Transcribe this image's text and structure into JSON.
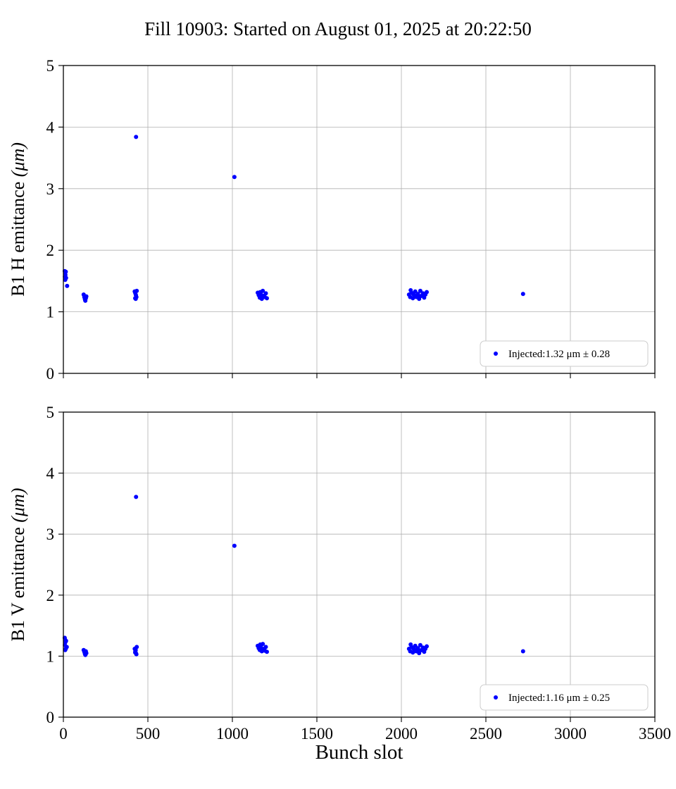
{
  "figure": {
    "title": "Fill 10903: Started on August 01, 2025 at 20:22:50",
    "xlabel": "Bunch slot",
    "background": "#ffffff",
    "axis_color": "#000000",
    "grid_color": "#b0b0b0",
    "marker_color": "#0000ff"
  },
  "chart_data": [
    {
      "type": "scatter",
      "ylabel": "B1 H emittance (μm)",
      "xlim": [
        0,
        3500
      ],
      "ylim": [
        0,
        5
      ],
      "xticks": [
        0,
        500,
        1000,
        1500,
        2000,
        2500,
        3000,
        3500
      ],
      "yticks": [
        0,
        1,
        2,
        3,
        4,
        5
      ],
      "grid": true,
      "legend": {
        "label": "Injected:1.32 μm ± 0.28",
        "position": "lower right"
      },
      "series": [
        {
          "name": "Injected",
          "color": "#0000ff",
          "points": [
            [
              8,
              1.66
            ],
            [
              10,
              1.63
            ],
            [
              12,
              1.6
            ],
            [
              9,
              1.57
            ],
            [
              14,
              1.65
            ],
            [
              11,
              1.52
            ],
            [
              16,
              1.55
            ],
            [
              22,
              1.42
            ],
            [
              120,
              1.28
            ],
            [
              124,
              1.24
            ],
            [
              127,
              1.21
            ],
            [
              130,
              1.18
            ],
            [
              133,
              1.22
            ],
            [
              136,
              1.25
            ],
            [
              129,
              1.19
            ],
            [
              422,
              1.33
            ],
            [
              426,
              1.3
            ],
            [
              429,
              1.27
            ],
            [
              432,
              1.24
            ],
            [
              428,
              1.21
            ],
            [
              434,
              1.34
            ],
            [
              425,
              1.22
            ],
            [
              430,
              3.84
            ],
            [
              1012,
              3.19
            ],
            [
              1150,
              1.31
            ],
            [
              1156,
              1.27
            ],
            [
              1162,
              1.23
            ],
            [
              1168,
              1.29
            ],
            [
              1174,
              1.21
            ],
            [
              1180,
              1.34
            ],
            [
              1186,
              1.26
            ],
            [
              1192,
              1.24
            ],
            [
              1198,
              1.3
            ],
            [
              1204,
              1.22
            ],
            [
              1170,
              1.25
            ],
            [
              1165,
              1.32
            ],
            [
              2045,
              1.28
            ],
            [
              2052,
              1.24
            ],
            [
              2060,
              1.31
            ],
            [
              2068,
              1.22
            ],
            [
              2075,
              1.27
            ],
            [
              2082,
              1.33
            ],
            [
              2090,
              1.25
            ],
            [
              2098,
              1.29
            ],
            [
              2105,
              1.21
            ],
            [
              2112,
              1.34
            ],
            [
              2120,
              1.26
            ],
            [
              2128,
              1.3
            ],
            [
              2135,
              1.23
            ],
            [
              2142,
              1.28
            ],
            [
              2150,
              1.32
            ],
            [
              2095,
              1.27
            ],
            [
              2088,
              1.24
            ],
            [
              2070,
              1.29
            ],
            [
              2055,
              1.35
            ],
            [
              2110,
              1.25
            ],
            [
              2720,
              1.29
            ]
          ]
        }
      ]
    },
    {
      "type": "scatter",
      "ylabel": "B1 V emittance (μm)",
      "xlim": [
        0,
        3500
      ],
      "ylim": [
        0,
        5
      ],
      "xticks": [
        0,
        500,
        1000,
        1500,
        2000,
        2500,
        3000,
        3500
      ],
      "yticks": [
        0,
        1,
        2,
        3,
        4,
        5
      ],
      "grid": true,
      "legend": {
        "label": "Injected:1.16 μm ± 0.25",
        "position": "lower right"
      },
      "series": [
        {
          "name": "Injected",
          "color": "#0000ff",
          "points": [
            [
              8,
              1.3
            ],
            [
              10,
              1.27
            ],
            [
              12,
              1.23
            ],
            [
              9,
              1.18
            ],
            [
              14,
              1.12
            ],
            [
              11,
              1.1
            ],
            [
              16,
              1.25
            ],
            [
              20,
              1.15
            ],
            [
              120,
              1.1
            ],
            [
              124,
              1.07
            ],
            [
              127,
              1.04
            ],
            [
              130,
              1.02
            ],
            [
              133,
              1.08
            ],
            [
              136,
              1.05
            ],
            [
              129,
              1.06
            ],
            [
              422,
              1.12
            ],
            [
              426,
              1.08
            ],
            [
              429,
              1.05
            ],
            [
              432,
              1.03
            ],
            [
              428,
              1.1
            ],
            [
              434,
              1.15
            ],
            [
              425,
              1.06
            ],
            [
              430,
              3.61
            ],
            [
              1012,
              2.81
            ],
            [
              1150,
              1.17
            ],
            [
              1156,
              1.13
            ],
            [
              1162,
              1.1
            ],
            [
              1168,
              1.16
            ],
            [
              1174,
              1.08
            ],
            [
              1180,
              1.2
            ],
            [
              1186,
              1.12
            ],
            [
              1192,
              1.09
            ],
            [
              1198,
              1.15
            ],
            [
              1204,
              1.07
            ],
            [
              1170,
              1.13
            ],
            [
              1165,
              1.19
            ],
            [
              2045,
              1.12
            ],
            [
              2052,
              1.08
            ],
            [
              2060,
              1.15
            ],
            [
              2068,
              1.06
            ],
            [
              2075,
              1.11
            ],
            [
              2082,
              1.17
            ],
            [
              2090,
              1.09
            ],
            [
              2098,
              1.13
            ],
            [
              2105,
              1.05
            ],
            [
              2112,
              1.18
            ],
            [
              2120,
              1.1
            ],
            [
              2128,
              1.14
            ],
            [
              2135,
              1.07
            ],
            [
              2142,
              1.12
            ],
            [
              2150,
              1.16
            ],
            [
              2095,
              1.11
            ],
            [
              2088,
              1.08
            ],
            [
              2070,
              1.13
            ],
            [
              2055,
              1.19
            ],
            [
              2110,
              1.09
            ],
            [
              2720,
              1.08
            ]
          ]
        }
      ]
    }
  ]
}
